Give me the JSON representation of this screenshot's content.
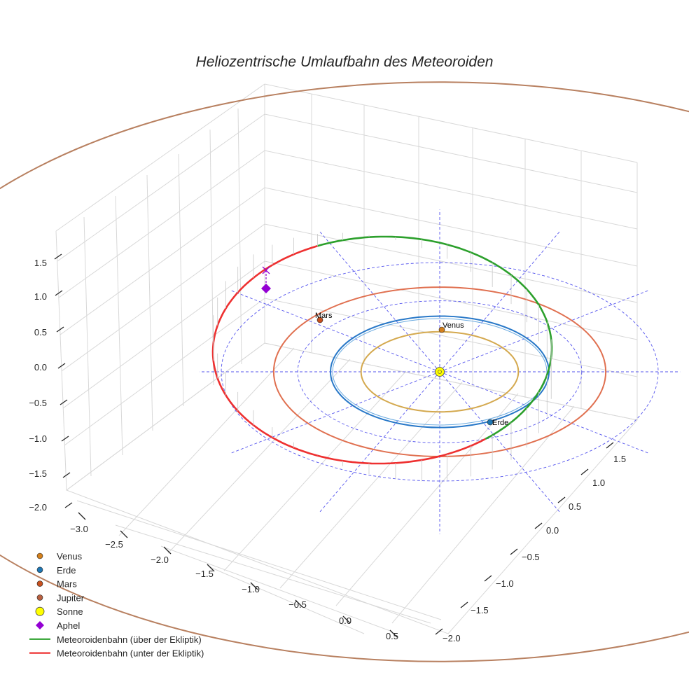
{
  "chart_data": {
    "type": "3d-orbit",
    "title": "Heliozentrische Umlaufbahn des Meteoroiden",
    "axes": {
      "x": {
        "ticks": [
          -3.0,
          -2.5,
          -2.0,
          -1.5,
          -1.0,
          -0.5,
          0.0,
          0.5
        ],
        "tick_labels": [
          "−3.0",
          "−2.5",
          "−2.0",
          "−1.5",
          "−1.0",
          "−0.5",
          "0.0",
          "0.5"
        ]
      },
      "y": {
        "ticks": [
          -2.0,
          -1.5,
          -1.0,
          -0.5,
          0.0,
          0.5,
          1.0,
          1.5
        ],
        "tick_labels": [
          "−2.0",
          "−1.5",
          "−1.0",
          "−0.5",
          "0.0",
          "0.5",
          "1.0",
          "1.5"
        ]
      },
      "z": {
        "ticks": [
          -2.0,
          -1.5,
          -1.0,
          -0.5,
          0.0,
          0.5,
          1.0,
          1.5
        ],
        "tick_labels": [
          "−2.0",
          "−1.5",
          "−1.0",
          "−0.5",
          "0.0",
          "0.5",
          "1.0",
          "1.5"
        ]
      },
      "grid": true
    },
    "planets": [
      {
        "name": "Venus",
        "semi_major_axis_au": 0.72,
        "color": "#d4a94f",
        "marker_color": "#d4801c",
        "label": "Venus"
      },
      {
        "name": "Erde",
        "semi_major_axis_au": 1.0,
        "color": "#2878c8",
        "marker_color": "#1f77b4",
        "label": "Erde"
      },
      {
        "name": "Mars",
        "semi_major_axis_au": 1.52,
        "color": "#e07050",
        "marker_color": "#c8501e",
        "label": "Mars"
      },
      {
        "name": "Jupiter",
        "semi_major_axis_au": 5.2,
        "color": "#b88060",
        "marker_color": "#b86040",
        "label": ""
      }
    ],
    "reference_circles_au": [
      1.3,
      2.0
    ],
    "sun": {
      "name": "Sonne",
      "color": "#ffff00"
    },
    "aphel": {
      "name": "Aphel",
      "color": "#9400d3",
      "z_au": 1.1
    },
    "meteoroid": {
      "above_ecliptic": {
        "name": "Meteoroidenbahn (über der Ekliptik)",
        "color": "#2ca02c"
      },
      "below_ecliptic": {
        "name": "Meteoroidenbahn (unter der Ekliptik)",
        "color": "#ee3030"
      }
    },
    "legend": {
      "placement": "bottom-left",
      "entries": [
        {
          "label": "Venus",
          "marker": "circle",
          "color": "#d4801c"
        },
        {
          "label": "Erde",
          "marker": "circle",
          "color": "#1f77b4"
        },
        {
          "label": "Mars",
          "marker": "circle",
          "color": "#c8501e"
        },
        {
          "label": "Jupiter",
          "marker": "circle",
          "color": "#b86040"
        },
        {
          "label": "Sonne",
          "marker": "big-circle",
          "color": "#ffff00"
        },
        {
          "label": "Aphel",
          "marker": "diamond",
          "color": "#9400d3"
        },
        {
          "label": "Meteoroidenbahn (über der Ekliptik)",
          "marker": "line",
          "color": "#2ca02c"
        },
        {
          "label": "Meteoroidenbahn (unter der Ekliptik)",
          "marker": "line",
          "color": "#ee3030"
        }
      ]
    }
  }
}
